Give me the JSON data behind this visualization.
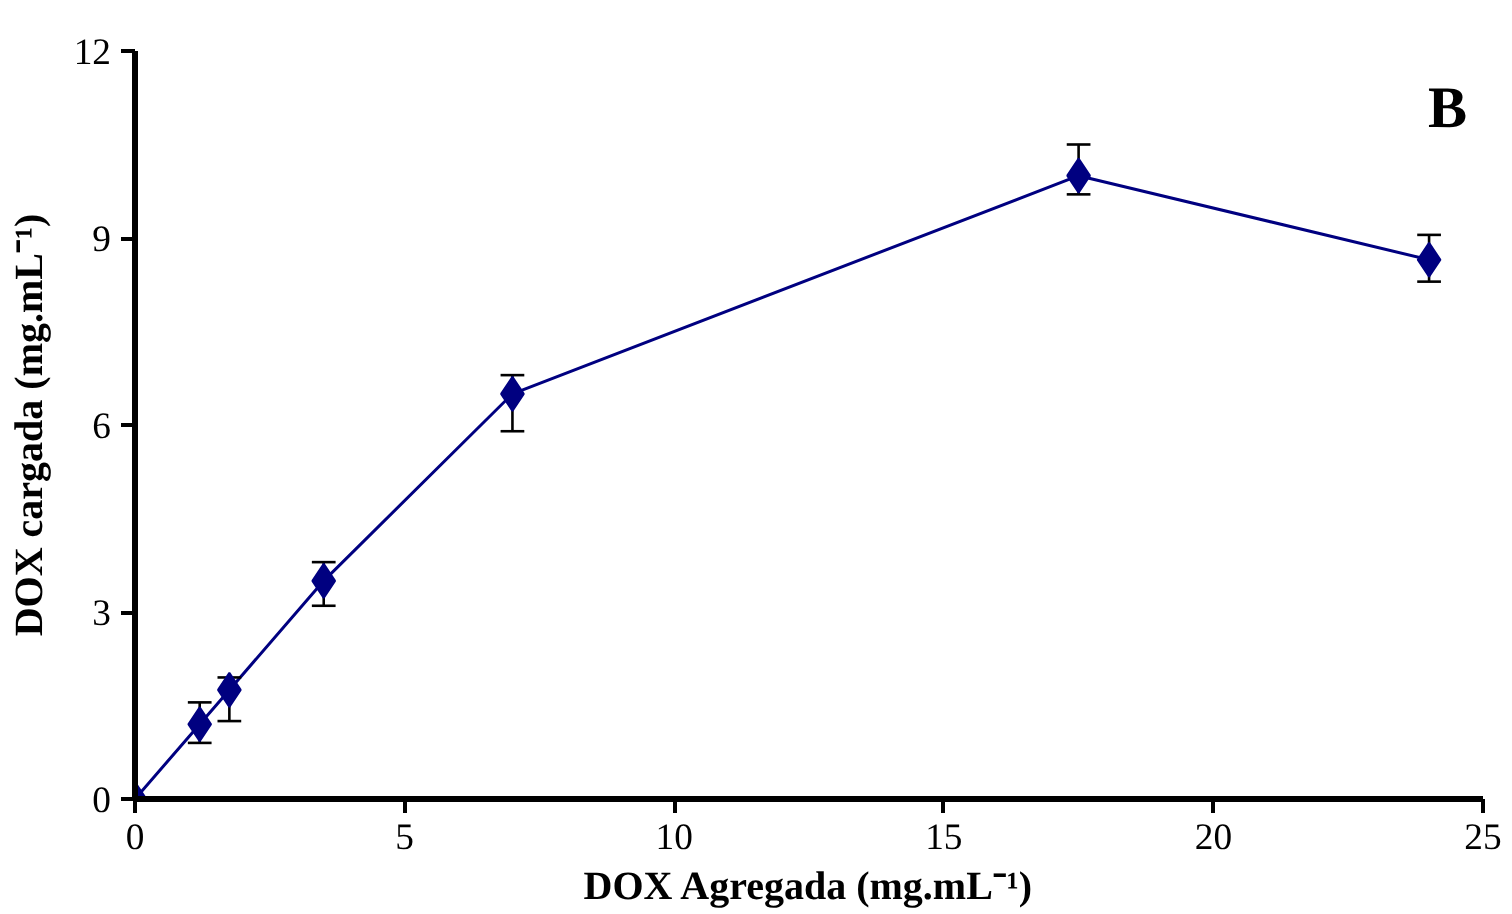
{
  "chart_data": {
    "type": "line",
    "xlabel": "DOX Agregada (mg.mL⁻¹)",
    "ylabel": "DOX cargada (mg.mL⁻¹)",
    "annotations": [
      "B"
    ],
    "x": [
      0,
      1.2,
      1.75,
      3.5,
      7,
      17.5,
      24
    ],
    "series": [
      {
        "color": "#000080",
        "values": [
          0,
          1.2,
          1.75,
          3.5,
          6.5,
          10,
          8.65
        ],
        "errors": [
          null,
          [
            0.9,
            1.55
          ],
          [
            1.25,
            1.95
          ],
          [
            3.1,
            3.8
          ],
          [
            5.9,
            6.8
          ],
          [
            9.7,
            10.5
          ],
          [
            8.3,
            9.05
          ]
        ]
      }
    ],
    "xlim": [
      0,
      25
    ],
    "xticks": [
      0,
      5,
      10,
      15,
      20,
      25
    ],
    "ylim": [
      0,
      12
    ],
    "yticks": [
      0,
      3,
      6,
      9,
      12
    ],
    "grid": false,
    "marker": "diamond",
    "line_style": "solid"
  }
}
